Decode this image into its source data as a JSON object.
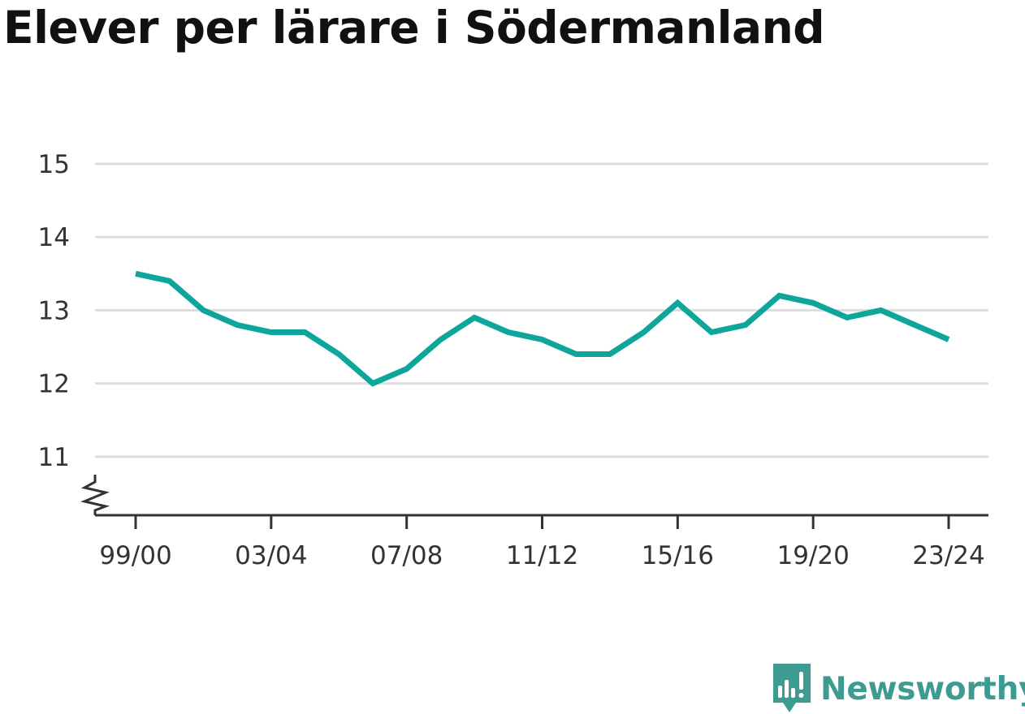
{
  "title": "Elever per lärare i Södermanland",
  "brand": {
    "name": "Newsworthy",
    "icon": "newsworthy-logo-icon"
  },
  "colors": {
    "line": "#0ea59a",
    "grid": "#dddddd",
    "axis": "#333333",
    "brand": "#3d9b91"
  },
  "chart_data": {
    "type": "line",
    "title": "Elever per lärare i Södermanland",
    "xlabel": "",
    "ylabel": "",
    "x": [
      "99/00",
      "00/01",
      "01/02",
      "02/03",
      "03/04",
      "04/05",
      "05/06",
      "06/07",
      "07/08",
      "08/09",
      "09/10",
      "10/11",
      "11/12",
      "12/13",
      "13/14",
      "14/15",
      "15/16",
      "16/17",
      "17/18",
      "18/19",
      "19/20",
      "20/21",
      "21/22",
      "22/23",
      "23/24"
    ],
    "x_tick_labels": [
      "99/00",
      "03/04",
      "07/08",
      "11/12",
      "15/16",
      "19/20",
      "23/24"
    ],
    "series": [
      {
        "values": [
          13.5,
          13.4,
          13.0,
          12.8,
          12.7,
          12.7,
          12.4,
          12.0,
          12.2,
          12.6,
          12.9,
          12.7,
          12.6,
          12.4,
          12.4,
          12.7,
          13.1,
          12.7,
          12.8,
          13.2,
          13.1,
          12.9,
          13.0,
          12.8,
          12.6
        ]
      }
    ],
    "y_ticks": [
      11,
      12,
      13,
      14,
      15
    ],
    "ylim": [
      10.2,
      15
    ],
    "y_axis_break": true,
    "grid": true,
    "legend": "none"
  }
}
